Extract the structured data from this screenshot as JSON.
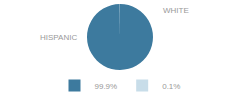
{
  "chart_data": {
    "type": "pie",
    "categories": [
      "HISPANIC",
      "WHITE"
    ],
    "values": [
      99.9,
      0.1
    ],
    "value_labels": [
      "99.9%",
      "0.1%"
    ],
    "colors": [
      "#3d7a9e",
      "#c8dde9"
    ],
    "legend": "bottom"
  }
}
